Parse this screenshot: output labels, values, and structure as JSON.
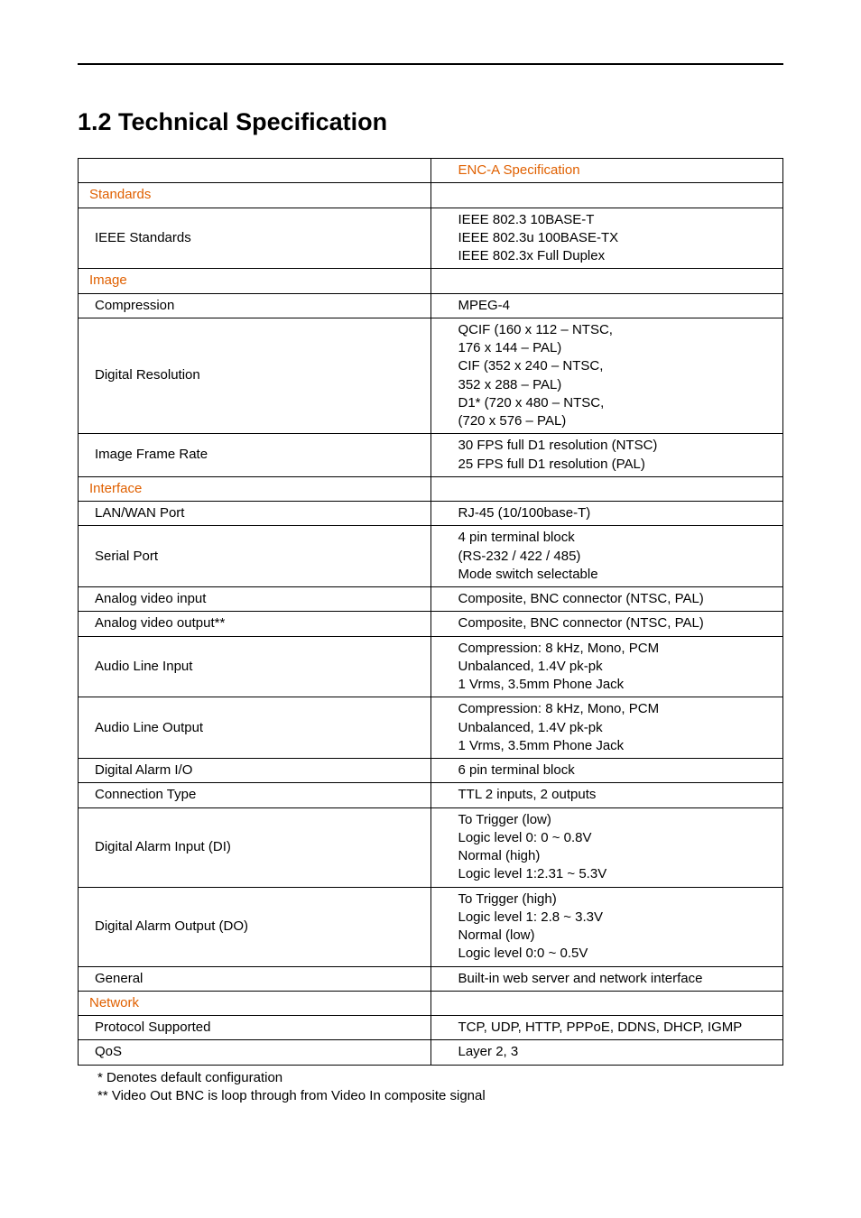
{
  "title": "1.2 Technical Specification",
  "colhead": "ENC-A Specification",
  "sections": {
    "standards": "Standards",
    "image": "Image",
    "interface": "Interface",
    "network": "Network"
  },
  "rows": {
    "ieee_std_l": "IEEE Standards",
    "ieee_std_r": "IEEE 802.3 10BASE-T\nIEEE 802.3u 100BASE-TX\nIEEE 802.3x Full Duplex",
    "compression_l": "Compression",
    "compression_r": "MPEG-4",
    "digres_l": "Digital Resolution",
    "digres_r": "QCIF (160 x 112 – NTSC,\n176 x 144 – PAL)\nCIF (352 x 240 – NTSC,\n352 x 288 – PAL)\nD1* (720 x 480 – NTSC,\n(720 x 576 – PAL)",
    "framerate_l": "Image Frame Rate",
    "framerate_r": "30 FPS full D1 resolution (NTSC)\n25 FPS full D1 resolution (PAL)",
    "lanwan_l": "LAN/WAN Port",
    "lanwan_r": "RJ-45 (10/100base-T)",
    "serial_l": "Serial Port",
    "serial_r": "4 pin terminal block\n(RS-232 / 422 / 485)\nMode switch selectable",
    "avin_l": "Analog video input",
    "avin_r": "Composite, BNC connector (NTSC, PAL)",
    "avout_l": "Analog video output**",
    "avout_r": "Composite, BNC connector (NTSC, PAL)",
    "ali_l": "Audio Line Input",
    "ali_r": "Compression: 8 kHz, Mono, PCM\nUnbalanced, 1.4V pk-pk\n1 Vrms, 3.5mm Phone Jack",
    "alo_l": "Audio Line Output",
    "alo_r": "Compression: 8 kHz, Mono, PCM\nUnbalanced, 1.4V pk-pk\n1 Vrms, 3.5mm Phone Jack",
    "daio_l": "Digital Alarm I/O",
    "daio_r": "6 pin terminal block",
    "conntype_l": "Connection Type",
    "conntype_r": "TTL 2 inputs, 2 outputs",
    "dai_l": "Digital Alarm Input (DI)",
    "dai_r": "To Trigger (low)\nLogic level 0: 0 ~ 0.8V\nNormal (high)\nLogic level 1:2.31 ~ 5.3V",
    "dao_l": "Digital Alarm Output (DO)",
    "dao_r": "To Trigger (high)\nLogic level 1: 2.8 ~ 3.3V\nNormal (low)\nLogic level 0:0 ~ 0.5V",
    "general_l": "General",
    "general_r": "Built-in web server and network interface",
    "proto_l": "Protocol Supported",
    "proto_r": "TCP, UDP, HTTP, PPPoE, DDNS, DHCP, IGMP",
    "qos_l": "QoS",
    "qos_r": "Layer 2, 3"
  },
  "footnotes": {
    "f1": "* Denotes default configuration",
    "f2": "** Video Out BNC is loop through from Video In composite signal"
  },
  "colors": {
    "accent": "#e06000",
    "border": "#000000",
    "text": "#000000"
  }
}
